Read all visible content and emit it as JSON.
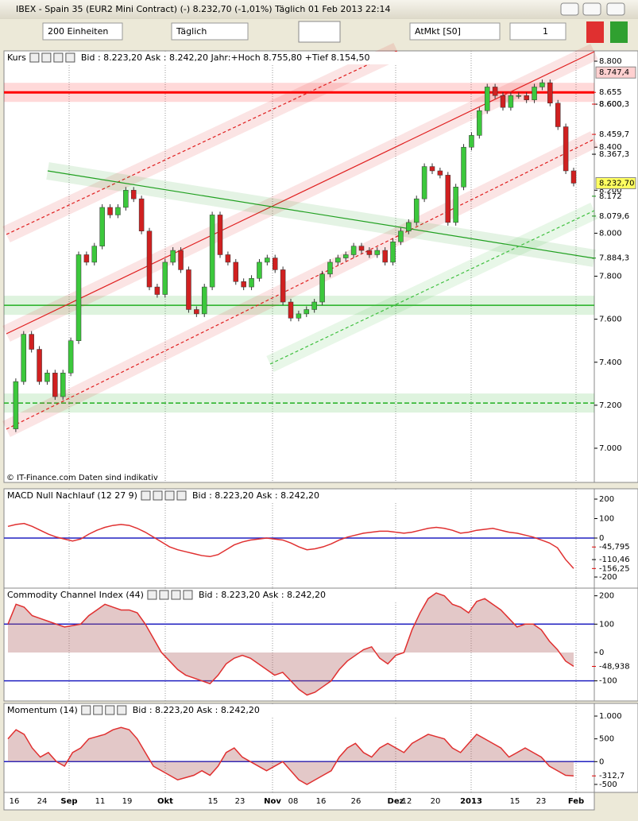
{
  "window": {
    "title": "IBEX - Spain 35 (EUR2 Mini Contract) (-)   8.232,70 (-1,01%)   Täglich  01 Feb 2013 22:14"
  },
  "toolbar": {
    "units": "200 Einheiten",
    "period": "Täglich",
    "order": "AtMkt [S0]",
    "quantity": "1"
  },
  "watermark": "© IT-Finance.com  Daten sind indikativ",
  "time_axis": {
    "labels": [
      "16",
      "24",
      "Sep",
      "11",
      "19",
      "Okt",
      "15",
      "23",
      "Nov",
      "08",
      "16",
      "26",
      "Dez",
      "12",
      "20",
      "2013",
      "15",
      "23",
      "Feb"
    ]
  },
  "chart_data": [
    {
      "type": "candlestick",
      "title": "Kurs",
      "subtitle": "Bid : 8.223,20 Ask : 8.242,20 Jahr:+Hoch 8.755,80 +Tief 8.154,50",
      "ylim": [
        6841,
        8848
      ],
      "yticks": [
        {
          "value": 7000,
          "label": "7.000"
        },
        {
          "value": 7200,
          "label": "7.200"
        },
        {
          "value": 7400,
          "label": "7.400"
        },
        {
          "value": 7600,
          "label": "7.600"
        },
        {
          "value": 7800,
          "label": "7.800"
        },
        {
          "value": 8000,
          "label": "8.000"
        },
        {
          "value": 8200,
          "label": "8.200"
        },
        {
          "value": 8400,
          "label": "8.400"
        },
        {
          "value": 8600,
          "label": "8.600"
        },
        {
          "value": 8800,
          "label": "8.800"
        }
      ],
      "up_color": "#3cc83c",
      "down_color": "#d02020",
      "values": [
        7090,
        7310,
        7530,
        7460,
        7310,
        7350,
        7240,
        7350,
        7500,
        7900,
        7865,
        7940,
        8120,
        8085,
        8120,
        8200,
        8160,
        8010,
        7750,
        7715,
        7865,
        7920,
        7830,
        7645,
        7625,
        7750,
        8085,
        7900,
        7865,
        7775,
        7750,
        7790,
        7865,
        7885,
        7830,
        7680,
        7605,
        7625,
        7645,
        7680,
        7810,
        7865,
        7885,
        7900,
        7940,
        7920,
        7900,
        7920,
        7865,
        7960,
        8010,
        8050,
        8160,
        8310,
        8290,
        8270,
        8050,
        8215,
        8400,
        8455,
        8570,
        8680,
        8640,
        8585,
        8640,
        8640,
        8620,
        8680,
        8700,
        8605,
        8495,
        8290,
        8232.7
      ],
      "hlines": [
        {
          "value": 8655,
          "color": "#ff0000"
        },
        {
          "value": 7665,
          "color": "#20b020"
        },
        {
          "value": 7210,
          "color": "#20b020"
        }
      ],
      "markers": [
        {
          "value": 8747.4,
          "label": "8.747,4",
          "color": "#e00000"
        },
        {
          "value": 8655,
          "label": "8.655",
          "color": "#e00000"
        },
        {
          "value": 8600.3,
          "label": "8.600,3",
          "color": "#e00000"
        },
        {
          "value": 8459.7,
          "label": "8.459,7",
          "color": "#e00000"
        },
        {
          "value": 8367.3,
          "label": "8.367,3",
          "color": "#000000"
        },
        {
          "value": 8232.7,
          "label": "8.232,70",
          "color": "#000000"
        },
        {
          "value": 8172,
          "label": "8.172",
          "color": "#109010"
        },
        {
          "value": 8079.6,
          "label": "8.079,6",
          "color": "#109010"
        },
        {
          "value": 7884.3,
          "label": "7.884,3",
          "color": "#109010"
        }
      ]
    },
    {
      "type": "line",
      "title": "MACD Null Nachlauf (12 27 9)",
      "subtitle": "Bid : 8.223,20 Ask : 8.242,20",
      "ylim": [
        -257,
        253
      ],
      "yticks": [
        200,
        100,
        0,
        -200
      ],
      "color": "#e03030",
      "fill": false,
      "hlines": [
        {
          "value": 0,
          "color": "#2020c0"
        }
      ],
      "values": [
        60,
        70,
        75,
        60,
        40,
        20,
        5,
        -5,
        -15,
        -5,
        20,
        40,
        55,
        65,
        70,
        65,
        50,
        30,
        5,
        -20,
        -45,
        -60,
        -70,
        -80,
        -90,
        -95,
        -85,
        -60,
        -35,
        -20,
        -10,
        -5,
        0,
        -5,
        -10,
        -25,
        -45,
        -60,
        -55,
        -45,
        -30,
        -10,
        5,
        15,
        25,
        30,
        35,
        35,
        30,
        25,
        30,
        40,
        50,
        55,
        50,
        40,
        25,
        30,
        40,
        45,
        50,
        40,
        30,
        25,
        15,
        5,
        -10,
        -25,
        -50,
        -110,
        -156
      ],
      "markers": [
        {
          "value": -45.795,
          "label": "-45,795",
          "color": "#e00000"
        },
        {
          "value": -110.46,
          "label": "-110,46",
          "color": "#000000"
        },
        {
          "value": -156.25,
          "label": "-156,25",
          "color": "#e00000"
        }
      ]
    },
    {
      "type": "area",
      "title": "Commodity Channel Index (44)",
      "subtitle": "Bid : 8.223,20 Ask : 8.242,20",
      "ylim": [
        -171,
        227
      ],
      "yticks": [
        200,
        100,
        0,
        -100
      ],
      "color": "#e03030",
      "fill": true,
      "hlines": [
        {
          "value": 100,
          "color": "#2020c0"
        },
        {
          "value": -100,
          "color": "#2020c0"
        }
      ],
      "values": [
        100,
        170,
        160,
        130,
        120,
        110,
        100,
        90,
        95,
        100,
        130,
        150,
        170,
        160,
        150,
        150,
        140,
        100,
        50,
        0,
        -30,
        -60,
        -80,
        -90,
        -100,
        -110,
        -80,
        -40,
        -20,
        -10,
        -20,
        -40,
        -60,
        -80,
        -70,
        -100,
        -130,
        -150,
        -140,
        -120,
        -100,
        -60,
        -30,
        -10,
        10,
        20,
        -20,
        -40,
        -10,
        0,
        80,
        140,
        190,
        210,
        200,
        170,
        160,
        140,
        180,
        190,
        170,
        150,
        120,
        90,
        100,
        100,
        80,
        40,
        10,
        -30,
        -48.9
      ],
      "markers": [
        {
          "value": -48.938,
          "label": "-48,938",
          "color": "#e00000"
        }
      ]
    },
    {
      "type": "area",
      "title": "Momentum (14)",
      "subtitle": "Bid : 8.223,20 Ask : 8.242,20",
      "ylim": [
        -675,
        1279
      ],
      "yticks": [
        {
          "value": 1000,
          "label": "1.000"
        },
        500,
        0,
        -500
      ],
      "color": "#e03030",
      "fill": true,
      "hlines": [
        {
          "value": 0,
          "color": "#2020c0"
        }
      ],
      "values": [
        500,
        700,
        600,
        300,
        100,
        200,
        0,
        -100,
        200,
        300,
        500,
        550,
        600,
        700,
        750,
        700,
        500,
        200,
        -100,
        -200,
        -300,
        -400,
        -350,
        -300,
        -200,
        -300,
        -100,
        200,
        300,
        100,
        0,
        -100,
        -200,
        -100,
        0,
        -200,
        -400,
        -500,
        -400,
        -300,
        -200,
        100,
        300,
        400,
        200,
        100,
        300,
        400,
        300,
        200,
        400,
        500,
        600,
        550,
        500,
        300,
        200,
        400,
        600,
        500,
        400,
        300,
        100,
        200,
        300,
        200,
        100,
        -100,
        -200,
        -300,
        -312.7
      ],
      "markers": [
        {
          "value": -312.7,
          "label": "-312,7",
          "color": "#e00000"
        }
      ]
    }
  ]
}
